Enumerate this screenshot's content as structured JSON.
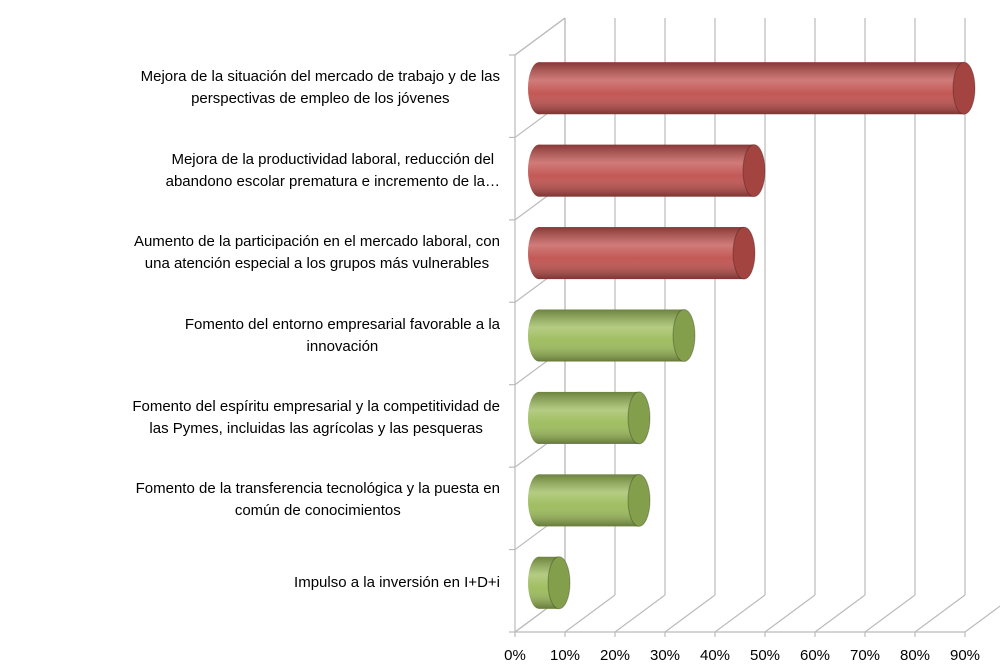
{
  "chart_data": {
    "type": "bar3d_horizontal",
    "categories": [
      "Mejora de la situación del mercado de trabajo y de las\nperspectivas de empleo de los jóvenes",
      "Mejora de la productividad laboral, reducción del\nabandono escolar prematura e incremento de la…",
      "Aumento de la participación en el mercado laboral, con\nuna atención especial a los grupos más vulnerables",
      "Fomento del entorno empresarial favorable a la\ninnovación",
      "Fomento del espíritu empresarial y la competitividad de\nlas Pymes, incluidas las agrícolas y las pesqueras",
      "Fomento de la transferencia tecnológica y la puesta en\ncomún de conocimientos",
      "Impulso a la inversión en I+D+i"
    ],
    "values": [
      85,
      43,
      41,
      29,
      20,
      20,
      4
    ],
    "colors": [
      "#c0504d",
      "#c0504d",
      "#c0504d",
      "#9bbb59",
      "#9bbb59",
      "#9bbb59",
      "#9bbb59"
    ],
    "xlim": [
      0,
      90
    ],
    "xticks": [
      {
        "value": 0,
        "label": "0%"
      },
      {
        "value": 10,
        "label": "10%"
      },
      {
        "value": 20,
        "label": "20%"
      },
      {
        "value": 30,
        "label": "30%"
      },
      {
        "value": 40,
        "label": "40%"
      },
      {
        "value": 50,
        "label": "50%"
      },
      {
        "value": 60,
        "label": "60%"
      },
      {
        "value": 70,
        "label": "70%"
      },
      {
        "value": 80,
        "label": "80%"
      },
      {
        "value": 90,
        "label": "90%"
      }
    ],
    "grid": true
  }
}
